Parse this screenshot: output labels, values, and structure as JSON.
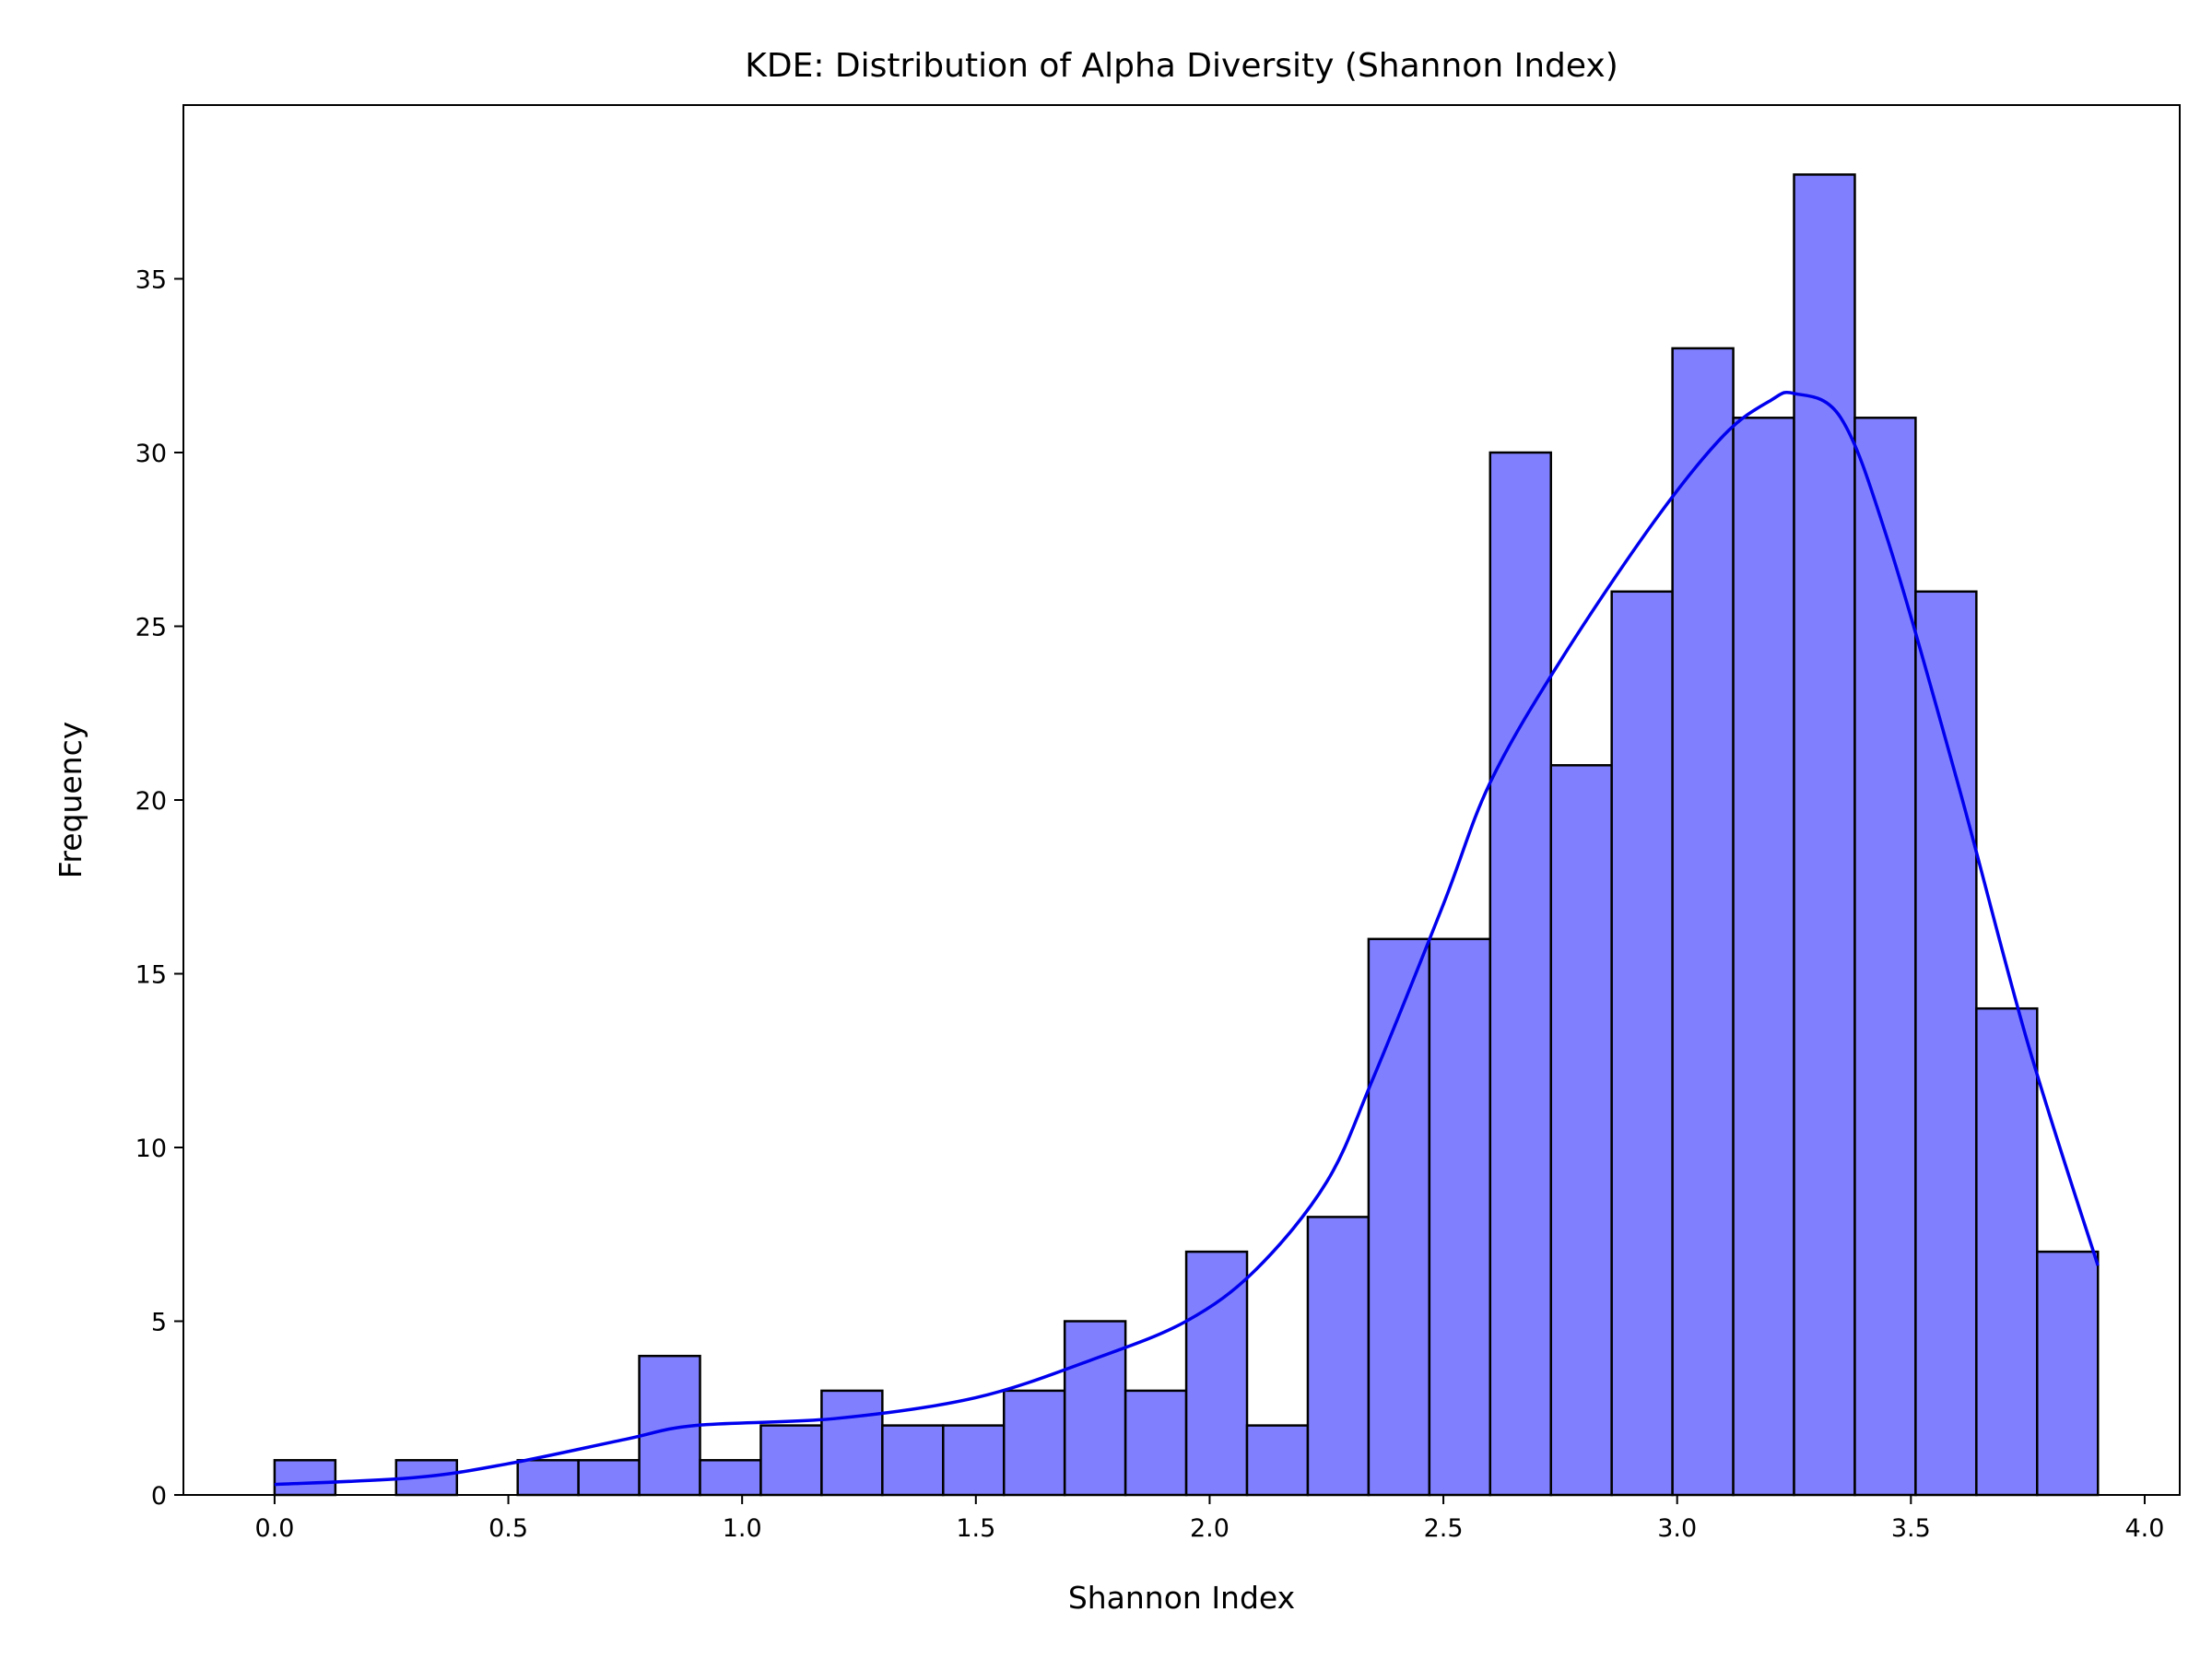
{
  "chart_data": {
    "type": "bar",
    "title": "KDE: Distribution of Alpha Diversity (Shannon Index)",
    "xlabel": "Shannon Index",
    "ylabel": "Frequency",
    "xlim": [
      -0.195,
      4.075
    ],
    "ylim": [
      0,
      40
    ],
    "xticks": [
      "0.0",
      "0.5",
      "1.0",
      "1.5",
      "2.0",
      "2.5",
      "3.0",
      "3.5",
      "4.0"
    ],
    "yticks": [
      "0",
      "5",
      "10",
      "15",
      "20",
      "25",
      "30",
      "35"
    ],
    "bin_start": 0.0,
    "bin_width": 0.13,
    "values": [
      1,
      0,
      1,
      0,
      1,
      1,
      4,
      1,
      2,
      3,
      2,
      2,
      3,
      5,
      3,
      7,
      2,
      8,
      16,
      16,
      30,
      21,
      26,
      33,
      31,
      38,
      31,
      26,
      14,
      7
    ],
    "bar_color": "#8080ff",
    "edge_color": "#000000",
    "kde": {
      "name": "KDE",
      "color": "#0000ee",
      "x": [
        0.0,
        0.3,
        0.5,
        0.75,
        0.9,
        1.2,
        1.5,
        1.75,
        1.95,
        2.1,
        2.25,
        2.35,
        2.5,
        2.6,
        2.75,
        2.95,
        3.1,
        3.2,
        3.25,
        3.35,
        3.45,
        3.6,
        3.75,
        3.9
      ],
      "y": [
        0.3,
        0.5,
        0.9,
        1.6,
        2.0,
        2.2,
        2.8,
        3.9,
        5.0,
        6.5,
        9.0,
        12.0,
        17.0,
        20.5,
        24.0,
        28.0,
        30.5,
        31.5,
        31.7,
        31.0,
        27.5,
        20.5,
        13.0,
        6.6
      ]
    }
  }
}
